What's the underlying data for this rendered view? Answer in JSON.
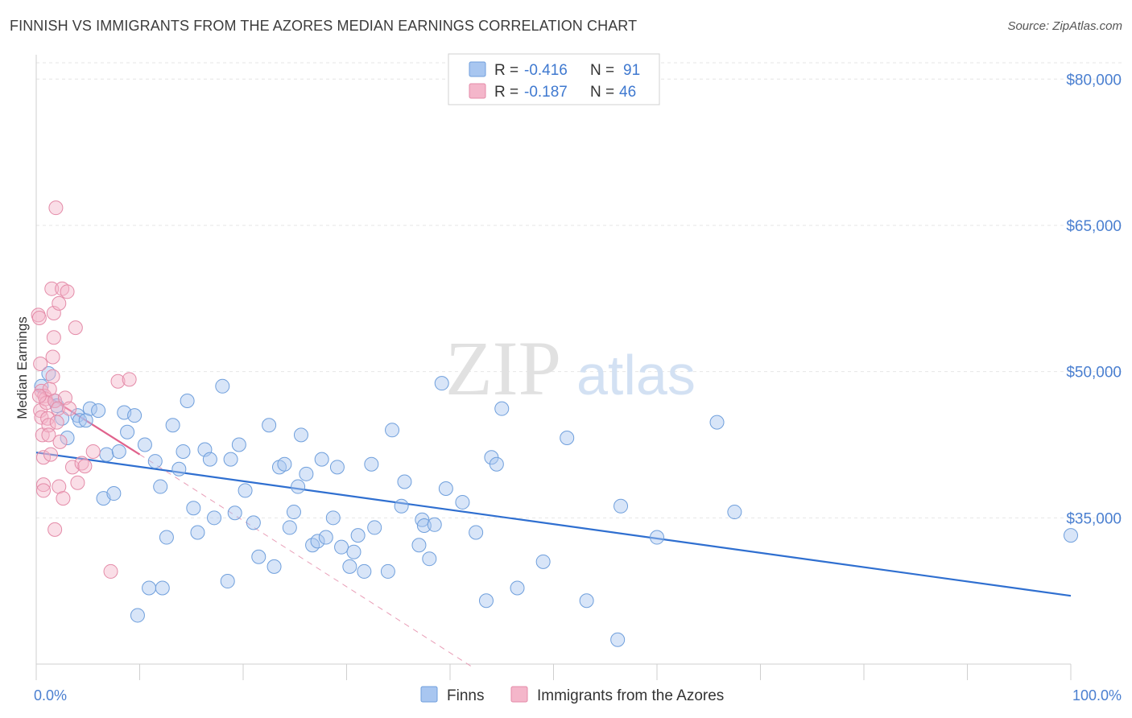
{
  "header": {
    "title": "FINNISH VS IMMIGRANTS FROM THE AZORES MEDIAN EARNINGS CORRELATION CHART",
    "source": "Source: ZipAtlas.com"
  },
  "watermark": {
    "part1": "ZIP",
    "part2": "atlas"
  },
  "chart_data": {
    "type": "scatter",
    "title": "FINNISH VS IMMIGRANTS FROM THE AZORES MEDIAN EARNINGS CORRELATION CHART",
    "xlabel": "",
    "ylabel": "Median Earnings",
    "xlim": [
      0,
      100
    ],
    "ylim": [
      20000,
      82500
    ],
    "x_tick_labels": {
      "min": "0.0%",
      "max": "100.0%"
    },
    "y_ticks": [
      {
        "value": 35000,
        "label": "$35,000"
      },
      {
        "value": 50000,
        "label": "$50,000"
      },
      {
        "value": 65000,
        "label": "$65,000"
      },
      {
        "value": 80000,
        "label": "$80,000"
      }
    ],
    "legend_top": [
      {
        "r_label": "R =",
        "r_value": "-0.416",
        "n_label": "N =",
        "n_value": "91",
        "color": "#a8c6f0"
      },
      {
        "r_label": "R =",
        "r_value": "-0.187",
        "n_label": "N =",
        "n_value": "46",
        "color": "#f4b6ca"
      }
    ],
    "series": [
      {
        "name": "Finns",
        "color": "#a8c6f0",
        "stroke": "#6f9fdc",
        "trend": {
          "x": [
            0,
            100
          ],
          "y": [
            41700,
            27000
          ],
          "color": "#2f6fd0"
        },
        "points": [
          [
            0.5,
            48.5
          ],
          [
            1.2,
            49.8
          ],
          [
            1.8,
            47.0
          ],
          [
            2.0,
            46.5
          ],
          [
            2.5,
            45.2
          ],
          [
            3.0,
            43.2
          ],
          [
            4.0,
            45.5
          ],
          [
            4.2,
            45.0
          ],
          [
            4.8,
            45.0
          ],
          [
            5.2,
            46.2
          ],
          [
            6.0,
            46.0
          ],
          [
            6.8,
            41.5
          ],
          [
            6.5,
            37.0
          ],
          [
            7.5,
            37.5
          ],
          [
            8.0,
            41.8
          ],
          [
            8.5,
            45.8
          ],
          [
            8.8,
            43.8
          ],
          [
            9.5,
            45.5
          ],
          [
            9.8,
            25.0
          ],
          [
            10.5,
            42.5
          ],
          [
            10.9,
            27.8
          ],
          [
            11.5,
            40.8
          ],
          [
            12.0,
            38.2
          ],
          [
            12.2,
            27.8
          ],
          [
            12.6,
            33.0
          ],
          [
            13.2,
            44.5
          ],
          [
            13.8,
            40.0
          ],
          [
            14.2,
            41.8
          ],
          [
            14.6,
            47.0
          ],
          [
            15.2,
            36.0
          ],
          [
            15.6,
            33.5
          ],
          [
            16.3,
            42.0
          ],
          [
            16.8,
            41.0
          ],
          [
            17.2,
            35.0
          ],
          [
            18.0,
            48.5
          ],
          [
            18.5,
            28.5
          ],
          [
            18.8,
            41.0
          ],
          [
            19.2,
            35.5
          ],
          [
            19.6,
            42.5
          ],
          [
            20.2,
            37.8
          ],
          [
            21.0,
            34.5
          ],
          [
            21.5,
            31.0
          ],
          [
            22.5,
            44.5
          ],
          [
            23.0,
            30.0
          ],
          [
            23.5,
            40.2
          ],
          [
            24.0,
            40.5
          ],
          [
            24.5,
            34.0
          ],
          [
            24.9,
            35.6
          ],
          [
            25.3,
            38.2
          ],
          [
            25.6,
            43.5
          ],
          [
            26.1,
            39.5
          ],
          [
            26.7,
            32.2
          ],
          [
            27.2,
            32.6
          ],
          [
            27.6,
            41.0
          ],
          [
            28.0,
            33.0
          ],
          [
            28.7,
            35.0
          ],
          [
            29.1,
            40.2
          ],
          [
            29.5,
            32.0
          ],
          [
            30.3,
            30.0
          ],
          [
            30.7,
            31.5
          ],
          [
            31.1,
            33.2
          ],
          [
            31.7,
            29.5
          ],
          [
            32.4,
            40.5
          ],
          [
            32.7,
            34.0
          ],
          [
            34.0,
            29.5
          ],
          [
            34.4,
            44.0
          ],
          [
            35.3,
            36.2
          ],
          [
            35.6,
            38.7
          ],
          [
            37.0,
            32.2
          ],
          [
            37.3,
            34.8
          ],
          [
            37.5,
            34.2
          ],
          [
            38.0,
            30.8
          ],
          [
            38.5,
            34.3
          ],
          [
            39.2,
            48.8
          ],
          [
            39.6,
            38.0
          ],
          [
            41.2,
            36.6
          ],
          [
            42.5,
            33.5
          ],
          [
            43.5,
            26.5
          ],
          [
            44.0,
            41.2
          ],
          [
            44.5,
            40.5
          ],
          [
            45.0,
            46.2
          ],
          [
            46.5,
            27.8
          ],
          [
            49.0,
            30.5
          ],
          [
            51.3,
            43.2
          ],
          [
            53.2,
            26.5
          ],
          [
            56.2,
            22.5
          ],
          [
            56.5,
            36.2
          ],
          [
            60.0,
            33.0
          ],
          [
            65.8,
            44.8
          ],
          [
            67.5,
            35.6
          ],
          [
            100.0,
            33.2
          ]
        ]
      },
      {
        "name": "Immigrants from the Azores",
        "color": "#f4b6ca",
        "stroke": "#e48ba8",
        "trend": {
          "x": [
            0,
            10
          ],
          "y": [
            48200,
            41500
          ],
          "color": "#e0628c"
        },
        "trend_ext": {
          "x": [
            10,
            42
          ],
          "y": [
            41500,
            19800
          ],
          "color": "#e89ab4"
        },
        "points": [
          [
            0.2,
            55.8
          ],
          [
            0.3,
            55.5
          ],
          [
            0.4,
            50.8
          ],
          [
            0.5,
            48.0
          ],
          [
            0.4,
            46.0
          ],
          [
            0.5,
            45.3
          ],
          [
            0.6,
            43.5
          ],
          [
            0.7,
            41.2
          ],
          [
            0.7,
            38.4
          ],
          [
            0.7,
            37.8
          ],
          [
            0.8,
            47.5
          ],
          [
            0.9,
            47.2
          ],
          [
            1.0,
            46.8
          ],
          [
            1.1,
            45.2
          ],
          [
            1.2,
            44.5
          ],
          [
            1.2,
            43.5
          ],
          [
            1.3,
            48.2
          ],
          [
            1.4,
            41.5
          ],
          [
            1.5,
            58.5
          ],
          [
            1.6,
            49.5
          ],
          [
            1.6,
            51.5
          ],
          [
            1.7,
            53.5
          ],
          [
            1.7,
            56.0
          ],
          [
            1.8,
            33.8
          ],
          [
            1.8,
            47.0
          ],
          [
            1.9,
            66.8
          ],
          [
            2.0,
            44.8
          ],
          [
            2.1,
            46.2
          ],
          [
            2.2,
            57.0
          ],
          [
            2.2,
            38.2
          ],
          [
            2.3,
            42.8
          ],
          [
            2.5,
            58.5
          ],
          [
            2.6,
            37.0
          ],
          [
            2.8,
            47.3
          ],
          [
            3.0,
            58.2
          ],
          [
            3.2,
            46.2
          ],
          [
            3.5,
            40.2
          ],
          [
            3.8,
            54.5
          ],
          [
            4.0,
            38.6
          ],
          [
            4.4,
            40.6
          ],
          [
            4.7,
            40.3
          ],
          [
            5.5,
            41.8
          ],
          [
            7.2,
            29.5
          ],
          [
            7.9,
            49.0
          ],
          [
            9.0,
            49.2
          ],
          [
            0.3,
            47.5
          ]
        ]
      }
    ]
  }
}
